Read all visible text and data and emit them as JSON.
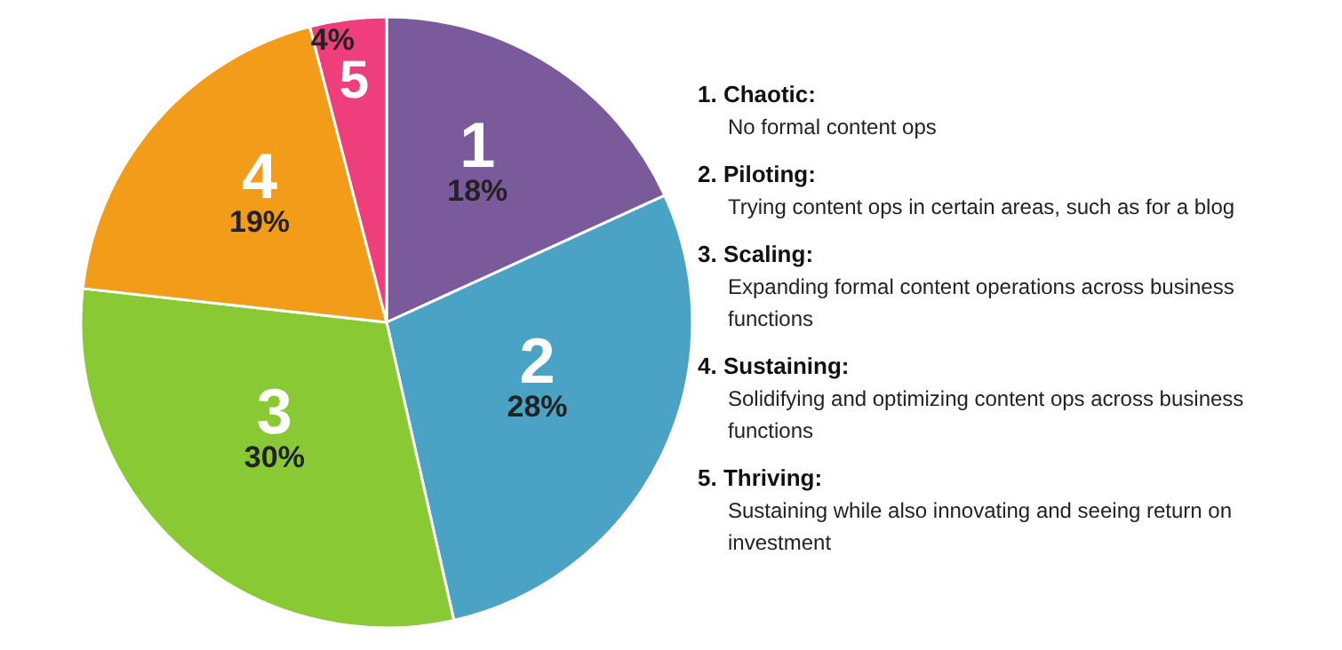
{
  "chart_data": {
    "type": "pie",
    "categories": [
      "1",
      "2",
      "3",
      "4",
      "5"
    ],
    "values": [
      18,
      28,
      30,
      19,
      4
    ],
    "value_labels": [
      "18%",
      "28%",
      "30%",
      "19%",
      "4%"
    ],
    "colors": [
      "#7b5a9b",
      "#4aa3c4",
      "#88c934",
      "#f39c1a",
      "#ee3e7b"
    ],
    "annotations": [
      "1. Chaotic:",
      "No formal content ops",
      "2. Piloting:",
      "Trying content ops in certain areas, such as for a blog",
      "3. Scaling:",
      "Expanding formal content operations across business functions",
      "4. Sustaining:",
      "Solidifying and optimizing content ops across business functions",
      "5. Thriving:",
      "Sustaining while also innovating and seeing return on investment"
    ]
  }
}
